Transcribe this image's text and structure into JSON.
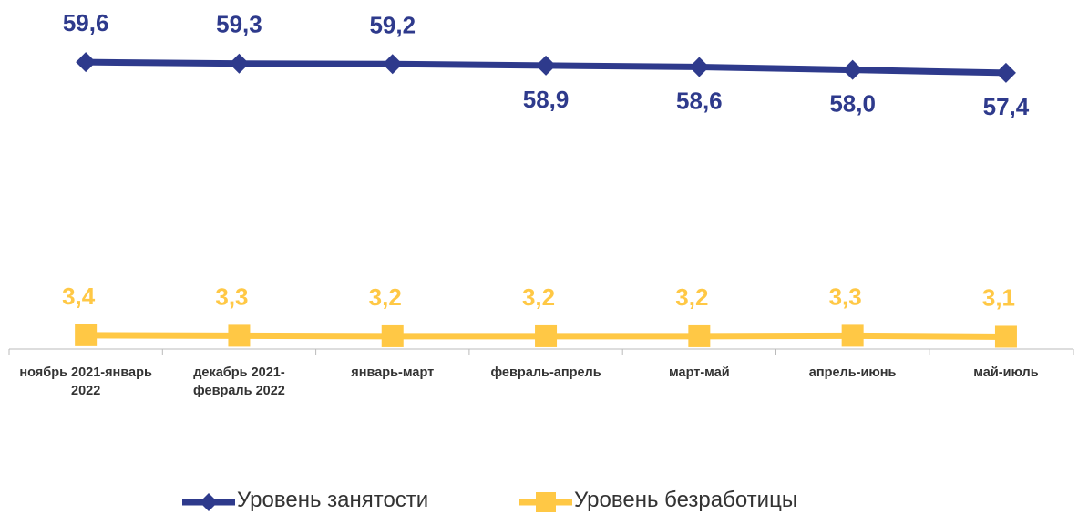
{
  "chart_data": {
    "type": "line",
    "categories": [
      "ноябрь 2021-январь 2022",
      "декабрь 2021-февраль 2022",
      "январь-март",
      "февраль-апрель",
      "март-май",
      "апрель-июнь",
      "май-июль"
    ],
    "series": [
      {
        "name": "Уровень занятости",
        "color": "#2e3a8c",
        "marker": "diamond",
        "values": [
          59.6,
          59.3,
          59.2,
          58.9,
          58.6,
          58.0,
          57.4
        ],
        "value_labels": [
          "59,6",
          "59,3",
          "59,2",
          "58,9",
          "58,6",
          "58,0",
          "57,4"
        ]
      },
      {
        "name": "Уровень безработицы",
        "color": "#ffc845",
        "marker": "square",
        "values": [
          3.4,
          3.3,
          3.2,
          3.2,
          3.2,
          3.3,
          3.1
        ],
        "value_labels": [
          "3,4",
          "3,3",
          "3,2",
          "3,2",
          "3,2",
          "3,3",
          "3,1"
        ]
      }
    ],
    "ylim": [
      0,
      60
    ],
    "grid": false,
    "legend": "bottom"
  }
}
